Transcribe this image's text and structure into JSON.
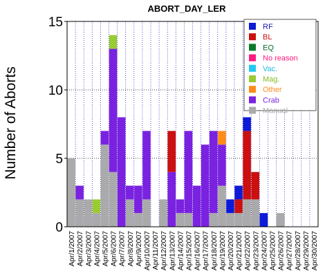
{
  "chart_data": {
    "type": "bar",
    "stacked": true,
    "title": "ABORT_DAY_LER",
    "xlabel": "",
    "ylabel": "Number of Aborts",
    "ylim": [
      0,
      15
    ],
    "yticks": [
      0,
      5,
      10,
      15
    ],
    "grid": true,
    "legend_position": "top-right",
    "categories": [
      "Apr/1/2007",
      "Apr/2/2007",
      "Apr/3/2007",
      "Apr/4/2007",
      "Apr/5/2007",
      "Apr/6/2007",
      "Apr/7/2007",
      "Apr/8/2007",
      "Apr/9/2007",
      "Apr/10/2007",
      "Apr/11/2007",
      "Apr/12/2007",
      "Apr/13/2007",
      "Apr/14/2007",
      "Apr/15/2007",
      "Apr/16/2007",
      "Apr/17/2007",
      "Apr/18/2007",
      "Apr/19/2007",
      "Apr/20/2007",
      "Apr/21/2007",
      "Apr/22/2007",
      "Apr/23/2007",
      "Apr/24/2007",
      "Apr/25/2007",
      "Apr/26/2007",
      "Apr/27/2007",
      "Apr/28/2007",
      "Apr/29/2007",
      "Apr/30/2007"
    ],
    "series": [
      {
        "name": "Manual",
        "color": "#aaaaaa",
        "values": [
          5,
          2,
          2,
          1,
          6,
          4,
          0,
          2,
          1,
          2,
          0,
          2,
          0,
          1,
          1,
          0,
          0,
          1,
          3,
          1,
          1,
          2,
          2,
          0,
          0,
          1,
          0,
          0,
          0,
          0
        ]
      },
      {
        "name": "Crab",
        "color": "#7b22e0",
        "values": [
          0,
          1,
          0,
          0,
          1,
          9,
          8,
          1,
          2,
          5,
          0,
          0,
          4,
          1,
          6,
          3,
          6,
          6,
          3,
          0,
          0,
          0,
          0,
          0,
          0,
          0,
          0,
          0,
          0,
          0
        ]
      },
      {
        "name": "Other",
        "color": "#ff8c1a",
        "values": [
          0,
          0,
          0,
          0,
          0,
          0,
          0,
          0,
          0,
          0,
          0,
          0,
          0,
          0,
          0,
          0,
          0,
          0,
          1,
          0,
          0,
          0,
          0,
          0,
          0,
          0,
          0,
          0,
          0,
          0
        ]
      },
      {
        "name": "Mag.",
        "color": "#99cc33",
        "values": [
          0,
          0,
          0,
          1,
          0,
          1,
          0,
          0,
          0,
          0,
          0,
          0,
          0,
          0,
          0,
          0,
          0,
          0,
          0,
          0,
          0,
          0,
          0,
          0,
          0,
          0,
          0,
          0,
          0,
          0
        ]
      },
      {
        "name": "Vac.",
        "color": "#22c8f0",
        "values": [
          0,
          0,
          0,
          0,
          0,
          0,
          0,
          0,
          0,
          0,
          0,
          0,
          0,
          0,
          0,
          0,
          0,
          0,
          0,
          0,
          0,
          0,
          0,
          0,
          0,
          0,
          0,
          0,
          0,
          0
        ]
      },
      {
        "name": "No reason",
        "color": "#ff1a80",
        "values": [
          0,
          0,
          0,
          0,
          0,
          0,
          0,
          0,
          0,
          0,
          0,
          0,
          0,
          0,
          0,
          0,
          0,
          0,
          0,
          0,
          0,
          0,
          0,
          0,
          0,
          0,
          0,
          0,
          0,
          0
        ]
      },
      {
        "name": "EQ",
        "color": "#0a7a2a",
        "values": [
          0,
          0,
          0,
          0,
          0,
          0,
          0,
          0,
          0,
          0,
          0,
          0,
          0,
          0,
          0,
          0,
          0,
          0,
          0,
          0,
          0,
          0,
          0,
          0,
          0,
          0,
          0,
          0,
          0,
          0
        ]
      },
      {
        "name": "BL",
        "color": "#cc0f0f",
        "values": [
          0,
          0,
          0,
          0,
          0,
          0,
          0,
          0,
          0,
          0,
          0,
          0,
          3,
          0,
          0,
          0,
          0,
          0,
          0,
          0,
          1,
          5,
          2,
          0,
          0,
          0,
          0,
          0,
          0,
          0
        ]
      },
      {
        "name": "RF",
        "color": "#0d1ad6",
        "values": [
          0,
          0,
          0,
          0,
          0,
          0,
          0,
          0,
          0,
          0,
          0,
          0,
          0,
          0,
          0,
          0,
          0,
          0,
          0,
          1,
          1,
          1,
          0,
          1,
          0,
          0,
          0,
          0,
          0,
          0
        ]
      }
    ],
    "legend": [
      {
        "name": "RF",
        "color": "#0d1ad6",
        "text_color": "#1a1ab3"
      },
      {
        "name": "BL",
        "color": "#cc0f0f",
        "text_color": "#cc0f0f"
      },
      {
        "name": "EQ",
        "color": "#0a7a2a",
        "text_color": "#0a6a2a"
      },
      {
        "name": "No reason",
        "color": "#ff1a80",
        "text_color": "#ff1a80"
      },
      {
        "name": "Vac.",
        "color": "#22c8f0",
        "text_color": "#22b8e0"
      },
      {
        "name": "Mag.",
        "color": "#99cc33",
        "text_color": "#88bb22"
      },
      {
        "name": "Other",
        "color": "#ff8c1a",
        "text_color": "#ff8c1a"
      },
      {
        "name": "Crab",
        "color": "#7b22e0",
        "text_color": "#7b22e0"
      },
      {
        "name": "Manual",
        "color": "#aaaaaa",
        "text_color": "#aaaaaa"
      }
    ]
  }
}
